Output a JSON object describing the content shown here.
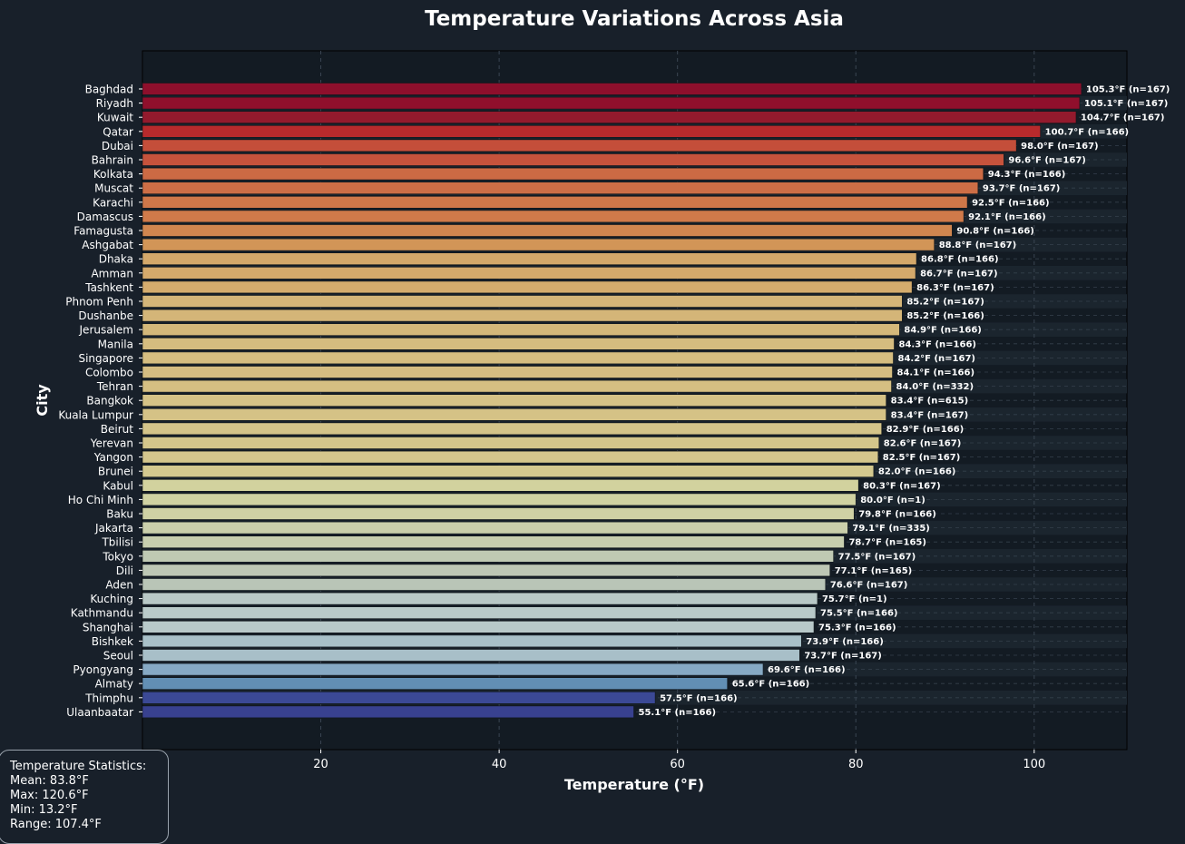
{
  "chart_data": {
    "type": "bar",
    "orientation": "horizontal",
    "title": "Temperature Variations Across Asia",
    "xlabel": "Temperature (°F)",
    "ylabel": "City",
    "xlim": [
      0,
      110.4
    ],
    "xticks": [
      20,
      40,
      60,
      80,
      100
    ],
    "grid": true,
    "categories": [
      "Baghdad",
      "Riyadh",
      "Kuwait",
      "Qatar",
      "Dubai",
      "Bahrain",
      "Kolkata",
      "Muscat",
      "Karachi",
      "Damascus",
      "Famagusta",
      "Ashgabat",
      "Dhaka",
      "Amman",
      "Tashkent",
      "Phnom Penh",
      "Dushanbe",
      "Jerusalem",
      "Manila",
      "Singapore",
      "Colombo",
      "Tehran",
      "Bangkok",
      "Kuala Lumpur",
      "Beirut",
      "Yerevan",
      "Yangon",
      "Brunei",
      "Kabul",
      "Ho Chi Minh",
      "Baku",
      "Jakarta",
      "Tbilisi",
      "Tokyo",
      "Dili",
      "Aden",
      "Kuching",
      "Kathmandu",
      "Shanghai",
      "Bishkek",
      "Seoul",
      "Pyongyang",
      "Almaty",
      "Thimphu",
      "Ulaanbaatar"
    ],
    "values": [
      105.3,
      105.1,
      104.7,
      100.7,
      98.0,
      96.6,
      94.3,
      93.7,
      92.5,
      92.1,
      90.8,
      88.8,
      86.8,
      86.7,
      86.3,
      85.2,
      85.2,
      84.9,
      84.3,
      84.2,
      84.1,
      84.0,
      83.4,
      83.4,
      82.9,
      82.6,
      82.5,
      82.0,
      80.3,
      80.0,
      79.8,
      79.1,
      78.7,
      77.5,
      77.1,
      76.6,
      75.7,
      75.5,
      75.3,
      73.9,
      73.7,
      69.6,
      65.6,
      57.5,
      55.1
    ],
    "labels": [
      "105.3°F (n=167)",
      "105.1°F (n=167)",
      "104.7°F (n=167)",
      "100.7°F (n=166)",
      "98.0°F (n=167)",
      "96.6°F (n=167)",
      "94.3°F (n=166)",
      "93.7°F (n=167)",
      "92.5°F (n=166)",
      "92.1°F (n=166)",
      "90.8°F (n=166)",
      "88.8°F (n=167)",
      "86.8°F (n=166)",
      "86.7°F (n=167)",
      "86.3°F (n=167)",
      "85.2°F (n=167)",
      "85.2°F (n=166)",
      "84.9°F (n=166)",
      "84.3°F (n=166)",
      "84.2°F (n=167)",
      "84.1°F (n=166)",
      "84.0°F (n=332)",
      "83.4°F (n=615)",
      "83.4°F (n=167)",
      "82.9°F (n=166)",
      "82.6°F (n=167)",
      "82.5°F (n=167)",
      "82.0°F (n=166)",
      "80.3°F (n=167)",
      "80.0°F (n=1)",
      "79.8°F (n=166)",
      "79.1°F (n=335)",
      "78.7°F (n=165)",
      "77.5°F (n=167)",
      "77.1°F (n=165)",
      "76.6°F (n=167)",
      "75.7°F (n=1)",
      "75.5°F (n=166)",
      "75.3°F (n=166)",
      "73.9°F (n=166)",
      "73.7°F (n=167)",
      "69.6°F (n=166)",
      "65.6°F (n=166)",
      "57.5°F (n=166)",
      "55.1°F (n=166)"
    ],
    "colors": [
      "#8e0f2c",
      "#900f2c",
      "#931a2d",
      "#b82a2c",
      "#c44e3a",
      "#c6533c",
      "#cc6a44",
      "#cd6e46",
      "#cf7749",
      "#d07a4a",
      "#d1864f",
      "#d29557",
      "#d4a86a",
      "#d4a96b",
      "#d5ac6d",
      "#d4b578",
      "#d4b578",
      "#d4b87a",
      "#d5bc7f",
      "#d5bd80",
      "#d5bd81",
      "#d5bf82",
      "#d5c286",
      "#d5c286",
      "#d4c489",
      "#d4c68b",
      "#d4c68c",
      "#d4c98f",
      "#d2d29e",
      "#d0d2a2",
      "#cfd1a4",
      "#cacfab",
      "#c7ceae",
      "#bfc9b3",
      "#bdc7b5",
      "#b9c5b7",
      "#b8c8c6",
      "#b9cac9",
      "#b8c9c9",
      "#a8c0c8",
      "#a8bfc8",
      "#86a9c4",
      "#628fb4",
      "#3b4995",
      "#38418f"
    ],
    "stats": {
      "title": "Temperature Statistics:",
      "mean": "Mean: 83.8°F",
      "max": "Max: 120.6°F",
      "min": "Min: 13.2°F",
      "range": "Range: 107.4°F"
    }
  }
}
